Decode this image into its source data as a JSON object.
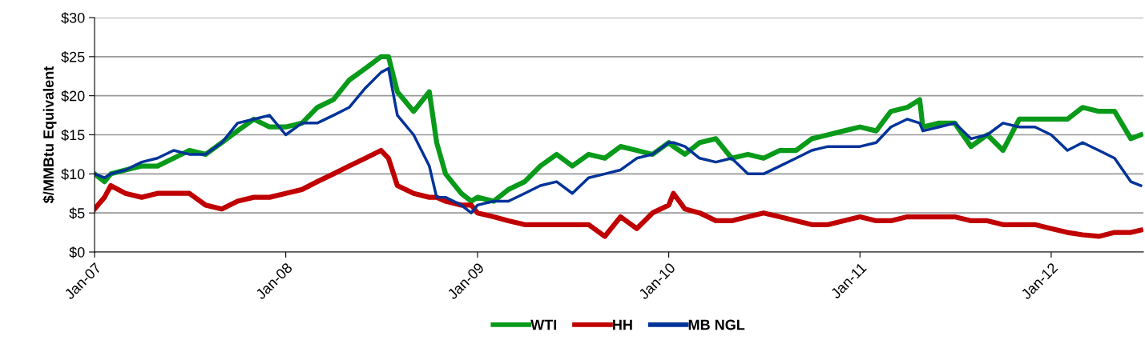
{
  "chart_data": {
    "type": "line",
    "ylabel": "$/MMBtu Equivalent",
    "x": [
      "2007-01-01",
      "2007-01-20",
      "2007-02-01",
      "2007-03-01",
      "2007-04-01",
      "2007-05-01",
      "2007-06-01",
      "2007-07-01",
      "2007-08-01",
      "2007-09-01",
      "2007-10-01",
      "2007-11-01",
      "2007-12-01",
      "2008-01-01",
      "2008-02-01",
      "2008-03-01",
      "2008-04-01",
      "2008-05-01",
      "2008-06-01",
      "2008-07-01",
      "2008-07-15",
      "2008-08-01",
      "2008-09-01",
      "2008-10-01",
      "2008-10-15",
      "2008-11-01",
      "2008-12-01",
      "2008-12-20",
      "2009-01-01",
      "2009-02-01",
      "2009-03-01",
      "2009-04-01",
      "2009-05-01",
      "2009-06-01",
      "2009-07-01",
      "2009-08-01",
      "2009-09-01",
      "2009-10-01",
      "2009-11-01",
      "2009-12-01",
      "2010-01-01",
      "2010-01-10",
      "2010-02-01",
      "2010-03-01",
      "2010-04-01",
      "2010-05-01",
      "2010-06-01",
      "2010-07-01",
      "2010-08-01",
      "2010-09-01",
      "2010-10-01",
      "2010-11-01",
      "2010-12-01",
      "2011-01-01",
      "2011-02-01",
      "2011-03-01",
      "2011-04-01",
      "2011-04-25",
      "2011-05-01",
      "2011-06-01",
      "2011-07-01",
      "2011-08-01",
      "2011-09-01",
      "2011-10-01",
      "2011-11-01",
      "2011-12-01",
      "2012-01-01",
      "2012-02-01",
      "2012-03-01",
      "2012-04-01",
      "2012-05-01",
      "2012-06-01",
      "2012-06-20"
    ],
    "series": [
      {
        "name": "WTI",
        "color": "#0a9a1a",
        "values": [
          10,
          9,
          10,
          10.5,
          11,
          11,
          12,
          13,
          12.5,
          14,
          15.5,
          17,
          16,
          16,
          16.5,
          18.5,
          19.5,
          22,
          23.5,
          25,
          25,
          20.5,
          18,
          20.5,
          14,
          10,
          7.5,
          6.5,
          7,
          6.5,
          8,
          9,
          11,
          12.5,
          11,
          12.5,
          12,
          13.5,
          13,
          12.5,
          14,
          13.5,
          12.5,
          14,
          14.5,
          12,
          12.5,
          12,
          13,
          13,
          14.5,
          15,
          15.5,
          16,
          15.5,
          18,
          18.5,
          19.5,
          16,
          16.5,
          16.5,
          13.5,
          15,
          13,
          17,
          17,
          17,
          17,
          18.5,
          18,
          18,
          14.5,
          15
        ]
      },
      {
        "name": "HH",
        "color": "#c00000",
        "values": [
          5.5,
          7,
          8.5,
          7.5,
          7,
          7.5,
          7.5,
          7.5,
          6,
          5.5,
          6.5,
          7,
          7,
          7.5,
          8,
          9,
          10,
          11,
          12,
          13,
          12,
          8.5,
          7.5,
          7,
          7,
          6.5,
          6,
          6,
          5,
          4.5,
          4,
          3.5,
          3.5,
          3.5,
          3.5,
          3.5,
          2,
          4.5,
          3,
          5,
          6,
          7.5,
          5.5,
          5,
          4,
          4,
          4.5,
          5,
          4.5,
          4,
          3.5,
          3.5,
          4,
          4.5,
          4,
          4,
          4.5,
          4.5,
          4.5,
          4.5,
          4.5,
          4,
          4,
          3.5,
          3.5,
          3.5,
          3,
          2.5,
          2.2,
          2,
          2.5,
          2.5,
          2.8
        ]
      },
      {
        "name": "MB NGL",
        "color": "#003399",
        "values": [
          10,
          9.5,
          10,
          10.5,
          11.5,
          12,
          13,
          12.5,
          12.5,
          14,
          16.5,
          17,
          17.5,
          15,
          16.5,
          16.5,
          17.5,
          18.5,
          21,
          23,
          23.5,
          17.5,
          15,
          11,
          7,
          7,
          6,
          5,
          6,
          6.5,
          6.5,
          7.5,
          8.5,
          9,
          7.5,
          9.5,
          10,
          10.5,
          12,
          12.5,
          14,
          14,
          13.5,
          12,
          11.5,
          12,
          10,
          10,
          11,
          12,
          13,
          13.5,
          13.5,
          13.5,
          14,
          16,
          17,
          16.5,
          15.5,
          16,
          16.5,
          14.5,
          15,
          16.5,
          16,
          16,
          15,
          13,
          14,
          13,
          12,
          9,
          8.5
        ]
      }
    ],
    "xlim": [
      "2007-01-01",
      "2012-06-25"
    ],
    "xticks": [
      {
        "value": "2007-01-01",
        "label": "Jan-07"
      },
      {
        "value": "2008-01-01",
        "label": "Jan-08"
      },
      {
        "value": "2009-01-01",
        "label": "Jan-09"
      },
      {
        "value": "2010-01-01",
        "label": "Jan-10"
      },
      {
        "value": "2011-01-01",
        "label": "Jan-11"
      },
      {
        "value": "2012-01-01",
        "label": "Jan-12"
      }
    ],
    "ylim": [
      0,
      30
    ],
    "yticks": [
      {
        "value": 0,
        "label": "$0"
      },
      {
        "value": 5,
        "label": "$5"
      },
      {
        "value": 10,
        "label": "$10"
      },
      {
        "value": 15,
        "label": "$15"
      },
      {
        "value": 20,
        "label": "$20"
      },
      {
        "value": 25,
        "label": "$25"
      },
      {
        "value": 30,
        "label": "$30"
      }
    ],
    "grid": "y",
    "legend": "bottom",
    "marker": "none",
    "line_style": "solid"
  }
}
